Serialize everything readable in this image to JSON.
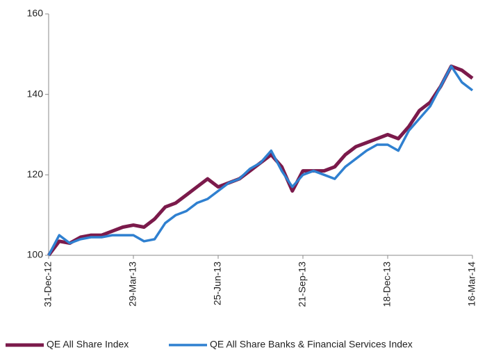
{
  "chart_data": {
    "type": "line",
    "categories": [
      "31-Dec-12",
      null,
      null,
      null,
      null,
      null,
      null,
      null,
      "29-Mar-13",
      null,
      null,
      null,
      null,
      null,
      null,
      null,
      "25-Jun-13",
      null,
      null,
      null,
      null,
      null,
      null,
      null,
      "21-Sep-13",
      null,
      null,
      null,
      null,
      null,
      null,
      null,
      "18-Dec-13",
      null,
      null,
      null,
      null,
      null,
      null,
      null,
      "16-Mar-14"
    ],
    "series": [
      {
        "name": "QE All Share Index",
        "color": "#7b1a4b",
        "values": [
          100,
          103.5,
          103,
          104.5,
          105,
          105,
          106,
          107,
          107.5,
          107,
          109,
          112,
          113,
          115,
          117,
          119,
          117,
          118,
          119,
          121,
          123,
          125,
          122,
          116,
          121,
          121,
          121,
          122,
          125,
          127,
          128,
          129,
          130,
          129,
          132,
          136,
          138,
          142,
          147,
          146,
          144
        ]
      },
      {
        "name": "QE All Share Banks & Financial Services Index",
        "color": "#2f80d0",
        "values": [
          100,
          105,
          103,
          104,
          104.5,
          104.5,
          105,
          105,
          105,
          103.5,
          104,
          108,
          110,
          111,
          113,
          114,
          116,
          118,
          119,
          121.5,
          123,
          126,
          121,
          117,
          120,
          121,
          120,
          119,
          122,
          124,
          126,
          127.5,
          127.5,
          126,
          131,
          134,
          137,
          142,
          147,
          143,
          141
        ]
      }
    ],
    "ylim": [
      100,
      160
    ],
    "yticks": [
      100,
      120,
      140,
      160
    ],
    "grid": false,
    "legend": "bottom"
  }
}
